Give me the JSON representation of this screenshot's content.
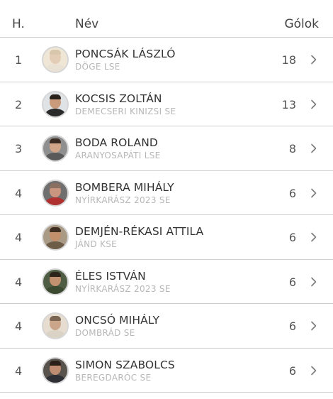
{
  "header": {
    "rank": "H.",
    "name": "Név",
    "goals": "Gólok"
  },
  "rows": [
    {
      "rank": "1",
      "name": "PONCSÁK LÁSZLÓ",
      "club": "DÖGE LSE",
      "goals": "18",
      "skin": "#e4cdb6",
      "bg": "#efe6d6",
      "shirt": "#e9e1d3",
      "hair": "#d9c7ad"
    },
    {
      "rank": "2",
      "name": "KOCSIS ZOLTÁN",
      "club": "DEMECSERI KINIZSI SE",
      "goals": "13",
      "skin": "#c99a7c",
      "bg": "#dfe3e6",
      "shirt": "#2a2a2a",
      "hair": "#2b221c"
    },
    {
      "rank": "3",
      "name": "BODA ROLAND",
      "club": "ARANYOSAPÁTI LSE",
      "goals": "8",
      "skin": "#d1a688",
      "bg": "#8f8f8f",
      "shirt": "#5a5a5a",
      "hair": "#3a2c22"
    },
    {
      "rank": "4",
      "name": "BOMBERA MIHÁLY",
      "club": "NYÍRKARÁSZ 2023 SE",
      "goals": "6",
      "skin": "#c9957e",
      "bg": "#6f6f6f",
      "shirt": "#b03030",
      "hair": "#8a7060"
    },
    {
      "rank": "4",
      "name": "DEMJÉN-RÉKASI ATTILA",
      "club": "JÁND KSE",
      "goals": "6",
      "skin": "#c28f6d",
      "bg": "#a89a84",
      "shirt": "#6d5d48",
      "hair": "#3e2f22"
    },
    {
      "rank": "4",
      "name": "ÉLES ISTVÁN",
      "club": "NYÍRKARÁSZ 2023 SE",
      "goals": "6",
      "skin": "#c3916f",
      "bg": "#4f5d44",
      "shirt": "#3c4a32",
      "hair": "#2e241c"
    },
    {
      "rank": "4",
      "name": "ONCSÓ MIHÁLY",
      "club": "DOMBRÁD SE",
      "goals": "6",
      "skin": "#caa58a",
      "bg": "#e6ddd0",
      "shirt": "#dad2c4",
      "hair": "#7a6452"
    },
    {
      "rank": "4",
      "name": "SIMON SZABOLCS",
      "club": "BEREGDARÓC SE",
      "goals": "6",
      "skin": "#bf8e72",
      "bg": "#58534c",
      "shirt": "#2f2f36",
      "hair": "#2b2019"
    }
  ],
  "icons": {
    "row_arrow": "chevron-right-icon",
    "avatar": "player-avatar"
  }
}
